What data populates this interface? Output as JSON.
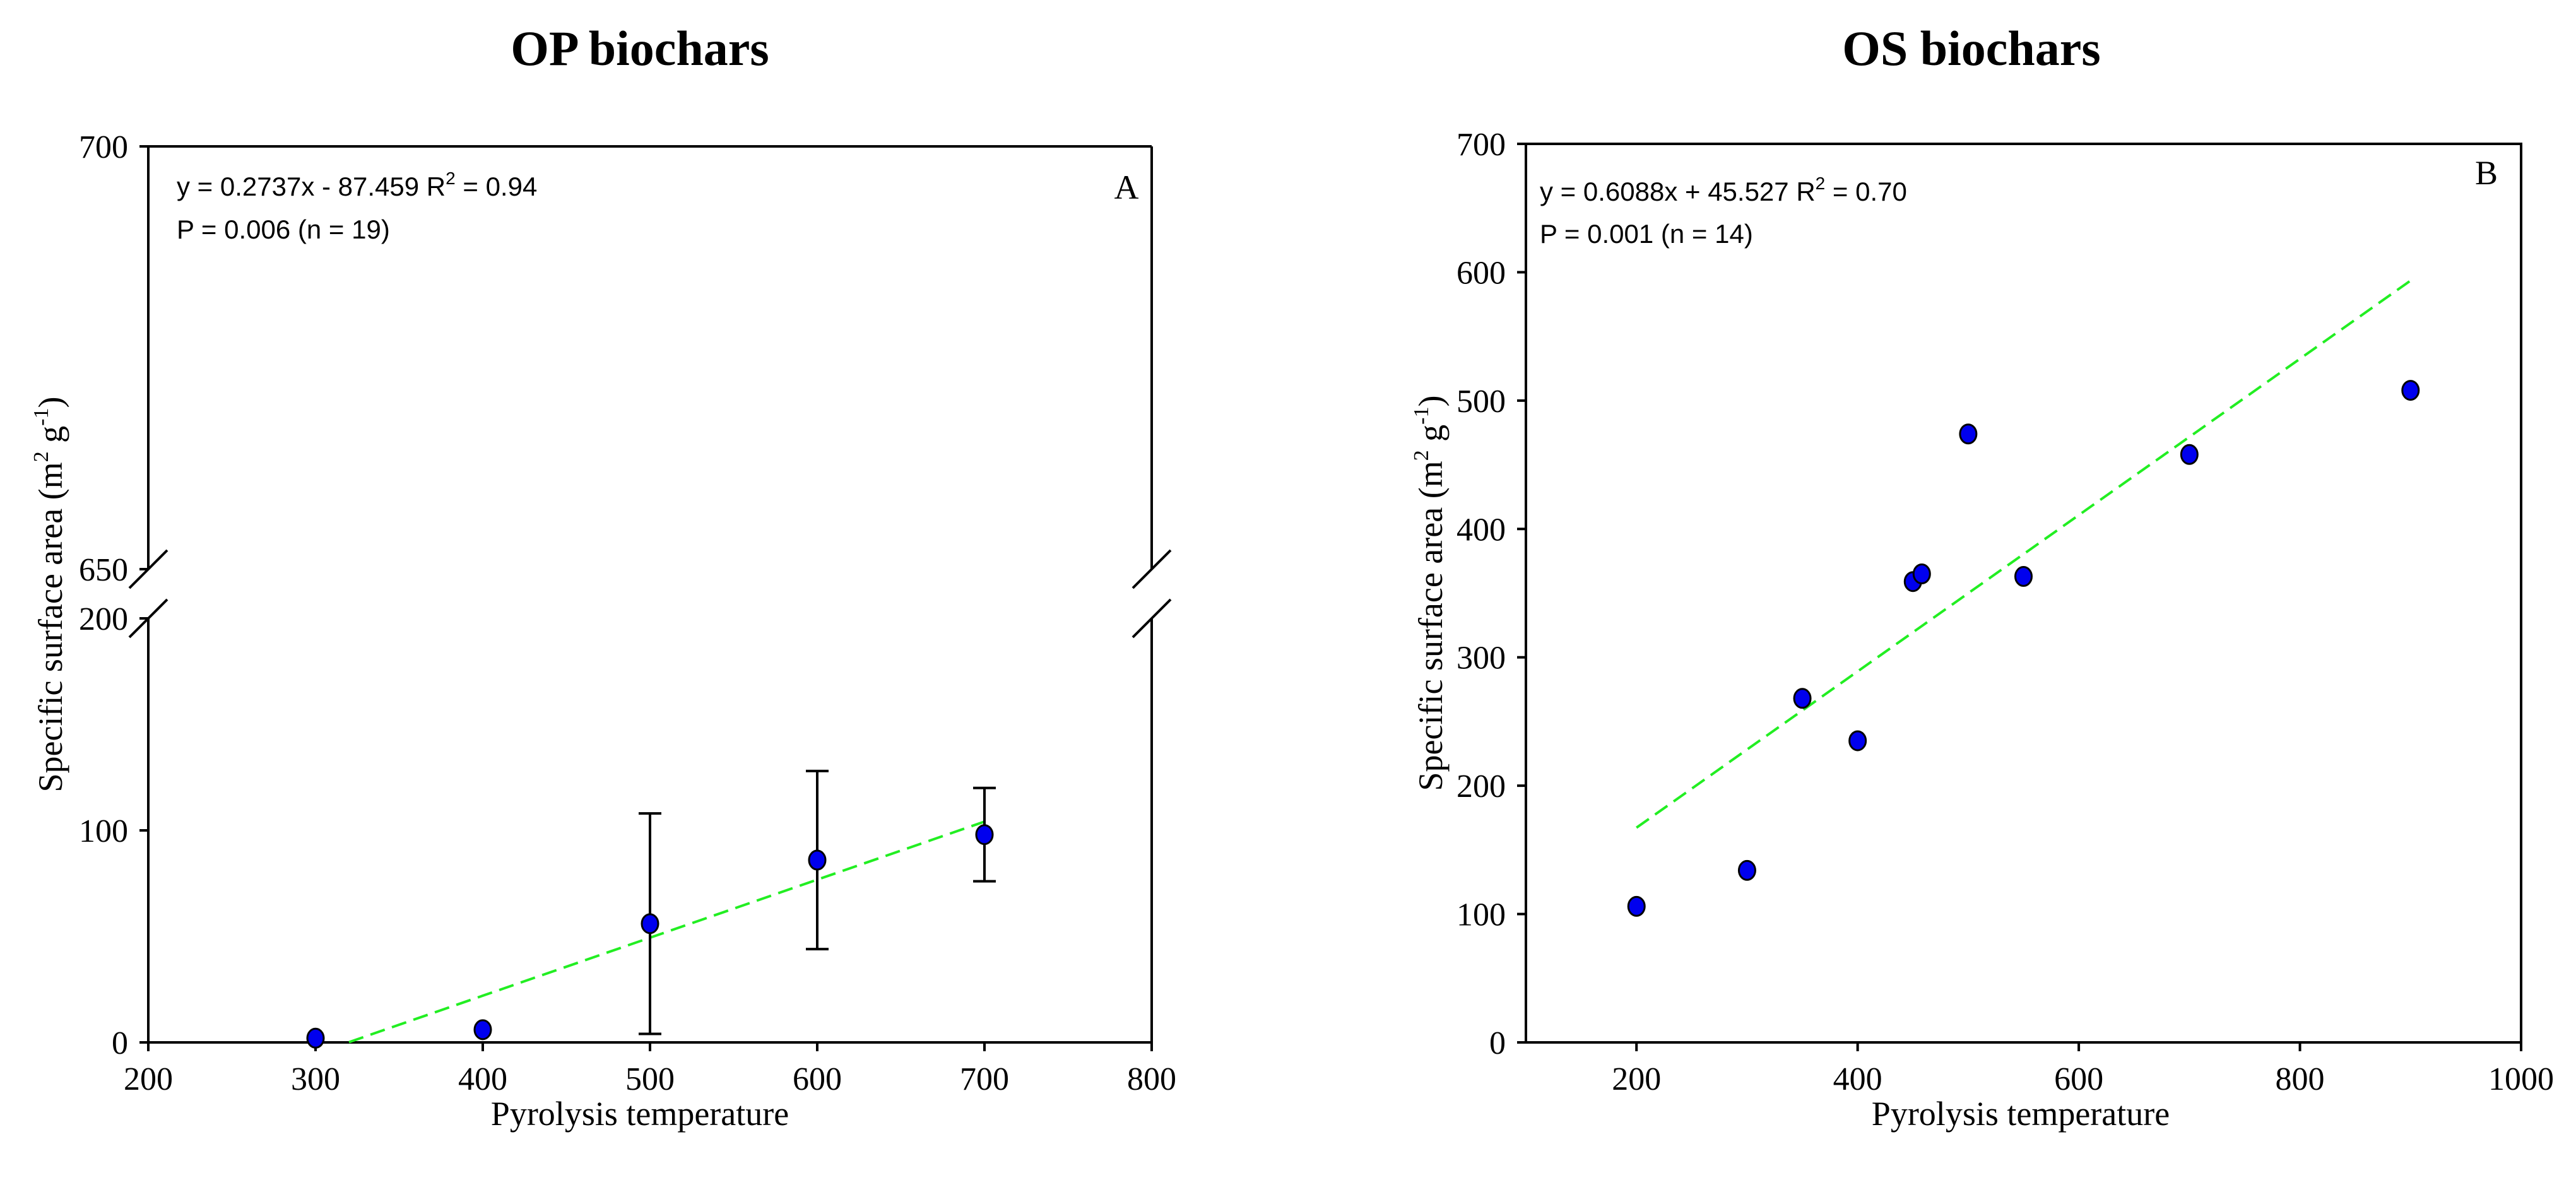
{
  "colors": {
    "marker_fill": "#0000ee",
    "marker_stroke": "#000000",
    "trend_line": "#22ee22",
    "axis": "#000000",
    "background": "#ffffff"
  },
  "chart_data": [
    {
      "type": "scatter",
      "title": "OP biochars",
      "panel_label": "A",
      "xlabel": "Pyrolysis temperature",
      "ylabel_parts": {
        "main": "Specific surface area (m",
        "sup1": "2",
        "mid": " g",
        "sup2": "-1",
        "end": ")"
      },
      "xlim": [
        200,
        800
      ],
      "x_ticks": [
        200,
        300,
        400,
        500,
        600,
        700,
        800
      ],
      "y_break": {
        "lower_range": [
          0,
          200
        ],
        "upper_range": [
          650,
          700
        ]
      },
      "y_ticks_lower": [
        0,
        100,
        200
      ],
      "y_ticks_upper": [
        650,
        700
      ],
      "equation_line1": {
        "prefix": "y = 0.2737x - 87.459 R",
        "sup": "2",
        "suffix": " = 0.94"
      },
      "equation_line2": "P = 0.006 (n = 19)",
      "points": [
        {
          "x": 300,
          "y": 2,
          "err": 0
        },
        {
          "x": 400,
          "y": 6,
          "err": 0
        },
        {
          "x": 500,
          "y": 56,
          "err": 52
        },
        {
          "x": 600,
          "y": 86,
          "err": 42
        },
        {
          "x": 700,
          "y": 98,
          "err": 22
        }
      ],
      "trend": {
        "slope": 0.2737,
        "intercept": -87.459,
        "x_from": 320,
        "x_to": 700
      }
    },
    {
      "type": "scatter",
      "title": "OS biochars",
      "panel_label": "B",
      "xlabel": "Pyrolysis temperature",
      "ylabel_parts": {
        "main": "Specific surface area (m",
        "sup1": "2",
        "mid": " g",
        "sup2": "-1",
        "end": ")"
      },
      "xlim": [
        100,
        1000
      ],
      "x_ticks": [
        200,
        400,
        600,
        800,
        1000
      ],
      "ylim": [
        0,
        700
      ],
      "y_ticks": [
        0,
        100,
        200,
        300,
        400,
        500,
        600,
        700
      ],
      "equation_line1": {
        "prefix": "y = 0.6088x + 45.527 R",
        "sup": "2",
        "suffix": " = 0.70"
      },
      "equation_line2": "P = 0.001 (n = 14)",
      "points": [
        {
          "x": 200,
          "y": 106
        },
        {
          "x": 300,
          "y": 134
        },
        {
          "x": 350,
          "y": 268
        },
        {
          "x": 400,
          "y": 235
        },
        {
          "x": 450,
          "y": 359
        },
        {
          "x": 458,
          "y": 365
        },
        {
          "x": 500,
          "y": 474
        },
        {
          "x": 550,
          "y": 363
        },
        {
          "x": 700,
          "y": 458
        },
        {
          "x": 900,
          "y": 508
        }
      ],
      "trend": {
        "slope": 0.6088,
        "intercept": 45.527,
        "x_from": 200,
        "x_to": 900
      }
    }
  ]
}
